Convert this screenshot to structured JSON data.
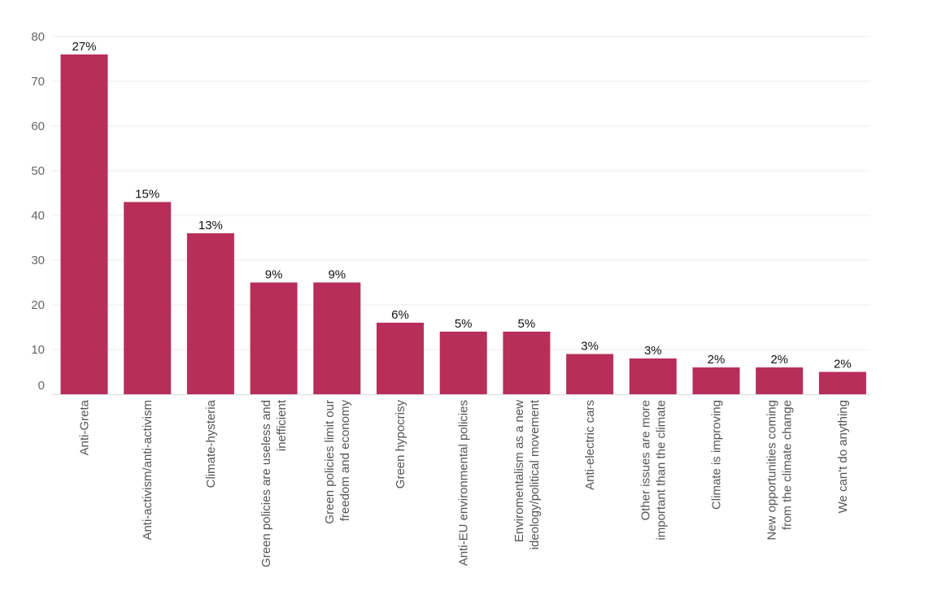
{
  "chart_data": {
    "type": "bar",
    "categories": [
      [
        "Anti-Greta"
      ],
      [
        "Anti-activism/anti-activism"
      ],
      [
        "Climate-hysteria"
      ],
      [
        "Green policies are useless and",
        "inefficient"
      ],
      [
        "Green policies limit our",
        "freedom and economy"
      ],
      [
        "Green hypocrisy"
      ],
      [
        "Anti-EU environmental policies"
      ],
      [
        "Enviromentalism as a new",
        "ideology/political movement"
      ],
      [
        "Anti-electric cars"
      ],
      [
        "Other issues are more",
        "important than the climate"
      ],
      [
        "Climate is improving"
      ],
      [
        "New opportunities coming",
        "from the climate change"
      ],
      [
        "We can't do anything"
      ]
    ],
    "values": [
      76,
      43,
      36,
      25,
      25,
      16,
      14,
      14,
      9,
      8,
      6,
      6,
      5
    ],
    "data_labels": [
      "27%",
      "15%",
      "13%",
      "9%",
      "9%",
      "6%",
      "5%",
      "5%",
      "3%",
      "3%",
      "2%",
      "2%",
      "2%"
    ],
    "y_ticks": [
      "0",
      "10",
      "20",
      "30",
      "40",
      "50",
      "60",
      "70",
      "80"
    ],
    "ylim": [
      0,
      80
    ],
    "grid": true,
    "bar_color": "#b82e5a",
    "title": "",
    "xlabel": "",
    "ylabel": ""
  }
}
